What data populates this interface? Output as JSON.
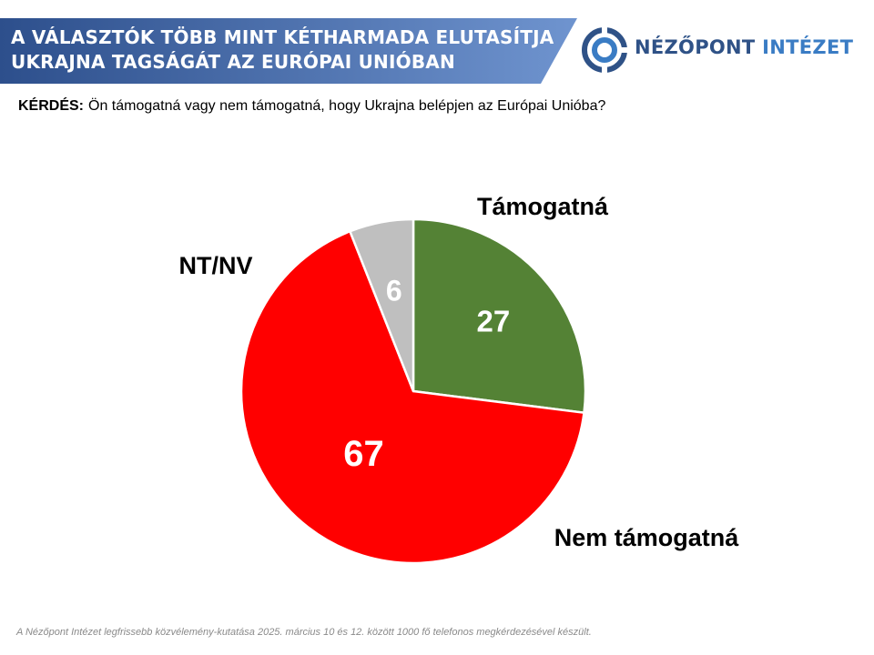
{
  "header": {
    "title_line1": "A VÁLASZTÓK TÖBB MINT KÉTHARMADA ELUTASÍTJA",
    "title_line2": "UKRAJNA TAGSÁGÁT AZ EURÓPAI UNIÓBAN",
    "gradient_start": "#2d4f8c",
    "gradient_end": "#6f94cf"
  },
  "logo": {
    "name_part1": "NÉZŐPONT",
    "name_part2": "INTÉZET",
    "color": "#2f5287",
    "accent_color": "#3a7cc4",
    "icon": "target-ring-icon"
  },
  "question": {
    "label": "KÉRDÉS:",
    "text": "Ön támogatná vagy nem támogatná, hogy Ukrajna belépjen az Európai Unióba?"
  },
  "chart_data": {
    "type": "pie",
    "title": "",
    "slices": [
      {
        "label": "Támogatná",
        "value": 27,
        "color": "#548235"
      },
      {
        "label": "Nem támogatná",
        "value": 67,
        "color": "#ff0000"
      },
      {
        "label": "NT/NV",
        "value": 6,
        "color": "#bfbfbf"
      }
    ],
    "start_angle_deg": 0,
    "direction": "clockwise",
    "legend": "none",
    "data_labels": "inside"
  },
  "footnote": "A Nézőpont Intézet legfrissebb közvélemény-kutatása 2025. március 10 és 12. között 1000 fő telefonos megkérdezésével készült."
}
